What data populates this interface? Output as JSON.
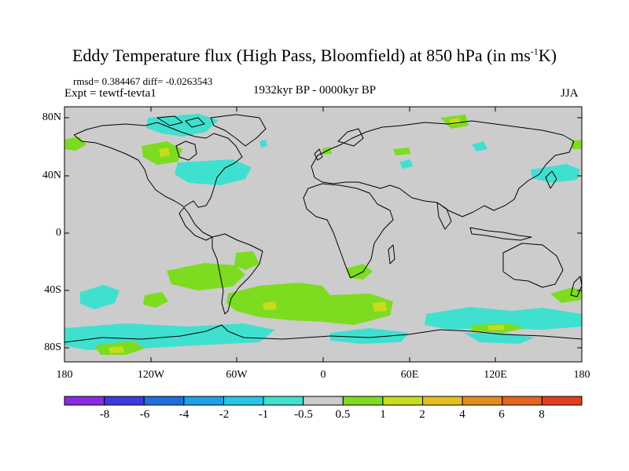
{
  "title": {
    "main": "Eddy Temperature flux (High Pass, Bloomfield) at 850 hPa (in ms",
    "sup": "-1",
    "tail": "K)"
  },
  "stats": "rmsd= 0.384467 diff= -0.0263543",
  "experiment": "Expt = tewtf-tevta1",
  "period": "1932kyr BP - 0000kyr BP",
  "season": "JJA",
  "y_axis": {
    "labels": [
      "80N",
      "40N",
      "0",
      "40S",
      "80S"
    ]
  },
  "x_axis": {
    "labels": [
      "180",
      "120W",
      "60W",
      "0",
      "60E",
      "120E",
      "180"
    ]
  },
  "colorbar": {
    "labels": [
      "-8",
      "-6",
      "-4",
      "-2",
      "-1",
      "-0.5",
      "0.5",
      "1",
      "2",
      "4",
      "6",
      "8"
    ],
    "colors": [
      "#8a2be2",
      "#3b3be6",
      "#1e6fe0",
      "#1ea0e6",
      "#22c8e6",
      "#40e0d0",
      "#cccccc",
      "#7ddc1f",
      "#c8dc1e",
      "#e6be1e",
      "#e68c1e",
      "#e6641e",
      "#e63c1e"
    ]
  },
  "colors": {
    "background": "#cccccc",
    "coast": "#000000",
    "negative": "#40e0d0",
    "positive": "#7ddc1f",
    "strong_positive": "#c8dc1e"
  }
}
